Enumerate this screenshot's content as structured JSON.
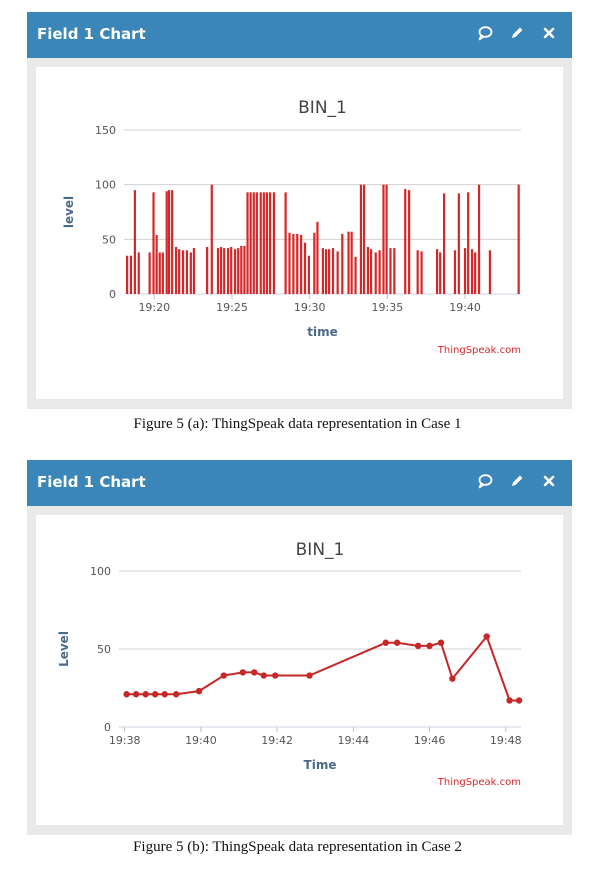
{
  "charts": [
    {
      "panel_title": "Field 1 Chart",
      "icons": [
        "comment-icon",
        "edit-icon",
        "close-icon"
      ],
      "caption": "Figure 5 (a): ThingSpeak data representation in Case 1",
      "chart_data": {
        "type": "bar",
        "title": "BIN_1",
        "xlabel": "time",
        "ylabel": "level",
        "credit": "ThingSpeak.com",
        "series_color": "#d62728",
        "grid": true,
        "ylim": [
          0,
          150
        ],
        "yticks": [
          0,
          50,
          100,
          150
        ],
        "x_unit": "minutes since 19:00",
        "xlim": [
          18.05,
          43.6
        ],
        "xticks": [
          {
            "x": 20,
            "label": "19:20"
          },
          {
            "x": 25,
            "label": "19:25"
          },
          {
            "x": 30,
            "label": "19:30"
          },
          {
            "x": 35,
            "label": "19:35"
          },
          {
            "x": 40,
            "label": "19:40"
          }
        ],
        "x": [
          18.25,
          18.5,
          18.75,
          19.0,
          19.7,
          19.95,
          20.15,
          20.35,
          20.55,
          20.8,
          20.95,
          21.15,
          21.4,
          21.6,
          21.85,
          22.1,
          22.35,
          22.55,
          23.4,
          23.7,
          24.1,
          24.3,
          24.5,
          24.75,
          24.95,
          25.2,
          25.4,
          25.6,
          25.8,
          26.0,
          26.2,
          26.4,
          26.6,
          26.85,
          27.05,
          27.25,
          27.45,
          27.7,
          28.45,
          28.7,
          28.95,
          29.2,
          29.45,
          29.7,
          29.95,
          30.3,
          30.5,
          30.85,
          31.05,
          31.25,
          31.5,
          31.8,
          32.1,
          32.5,
          32.7,
          32.95,
          33.3,
          33.5,
          33.75,
          33.95,
          34.25,
          34.5,
          34.75,
          34.95,
          35.2,
          35.45,
          36.15,
          36.4,
          36.95,
          37.2,
          38.2,
          38.4,
          38.65,
          39.35,
          39.6,
          40.0,
          40.2,
          40.45,
          40.65,
          40.9,
          41.6,
          43.45
        ],
        "values": [
          35,
          35,
          95,
          38,
          38,
          93,
          54,
          38,
          38,
          94,
          95,
          95,
          43,
          41,
          40,
          40,
          38,
          42,
          43,
          100,
          42,
          43,
          42,
          42,
          43,
          41,
          42,
          44,
          44,
          93,
          93,
          93,
          93,
          93,
          93,
          93,
          93,
          93,
          93,
          56,
          55,
          55,
          54,
          47,
          35,
          56,
          66,
          42,
          41,
          41,
          42,
          39,
          55,
          57,
          57,
          34,
          100,
          100,
          43,
          41,
          38,
          40,
          100,
          100,
          42,
          42,
          96,
          95,
          40,
          39,
          41,
          38,
          92,
          40,
          92,
          42,
          93,
          41,
          38,
          100,
          40,
          100
        ]
      }
    },
    {
      "panel_title": "Field 1 Chart",
      "icons": [
        "comment-icon",
        "edit-icon",
        "close-icon"
      ],
      "caption": "Figure 5 (b): ThingSpeak data representation in Case 2",
      "chart_data": {
        "type": "line",
        "title": "BIN_1",
        "xlabel": "Time",
        "ylabel": "Level",
        "credit": "ThingSpeak.com",
        "series_color": "#c62828",
        "grid": true,
        "ylim": [
          0,
          100
        ],
        "yticks": [
          0,
          50,
          100
        ],
        "x_unit": "minutes since 19:00",
        "xlim": [
          37.85,
          48.4
        ],
        "xticks": [
          {
            "x": 38,
            "label": "19:38"
          },
          {
            "x": 40,
            "label": "19:40"
          },
          {
            "x": 42,
            "label": "19:42"
          },
          {
            "x": 44,
            "label": "19:44"
          },
          {
            "x": 46,
            "label": "19:46"
          },
          {
            "x": 48,
            "label": "19:48"
          }
        ],
        "x": [
          38.05,
          38.3,
          38.55,
          38.8,
          39.05,
          39.35,
          39.95,
          40.6,
          41.1,
          41.4,
          41.65,
          41.95,
          42.85,
          44.85,
          45.15,
          45.7,
          46.0,
          46.3,
          46.6,
          47.5,
          48.1,
          48.35
        ],
        "values": [
          21,
          21,
          21,
          21,
          21,
          21,
          23,
          33,
          35,
          35,
          33,
          33,
          33,
          54,
          54,
          52,
          52,
          54,
          31,
          58,
          17,
          17
        ]
      }
    }
  ]
}
